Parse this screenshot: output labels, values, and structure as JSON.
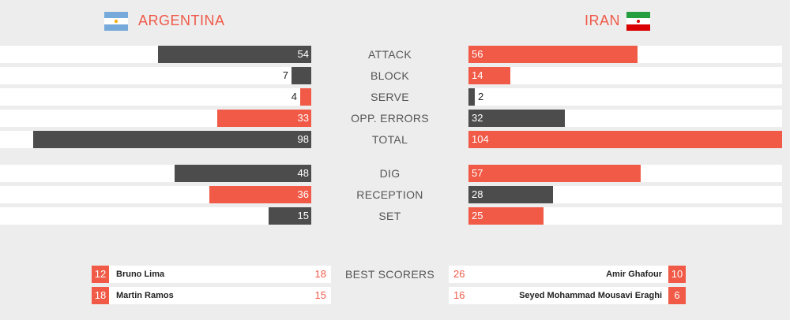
{
  "teams": {
    "home": {
      "name": "ARGENTINA",
      "flag": "argentina-flag"
    },
    "away": {
      "name": "IRAN",
      "flag": "iran-flag"
    }
  },
  "colors": {
    "accent": "#f05a47",
    "dark": "#4c4c4c",
    "track": "#ffffff",
    "background": "#eeeded"
  },
  "stats_max": 104,
  "stats_group1": [
    {
      "label": "ATTACK",
      "home": 54,
      "away": 56
    },
    {
      "label": "BLOCK",
      "home": 7,
      "away": 14
    },
    {
      "label": "SERVE",
      "home": 4,
      "away": 2
    },
    {
      "label": "OPP. ERRORS",
      "home": 33,
      "away": 32
    },
    {
      "label": "TOTAL",
      "home": 98,
      "away": 104
    }
  ],
  "stats_group2": [
    {
      "label": "DIG",
      "home": 48,
      "away": 57
    },
    {
      "label": "RECEPTION",
      "home": 36,
      "away": 28
    },
    {
      "label": "SET",
      "home": 15,
      "away": 25
    }
  ],
  "best_scorers": {
    "label": "BEST SCORERS",
    "home": [
      {
        "number": "12",
        "name": "Bruno Lima",
        "points": "18"
      },
      {
        "number": "18",
        "name": "Martin Ramos",
        "points": "15"
      }
    ],
    "away": [
      {
        "number": "10",
        "name": "Amir Ghafour",
        "points": "26"
      },
      {
        "number": "6",
        "name": "Seyed Mohammad Mousavi Eraghi",
        "points": "16"
      }
    ]
  }
}
